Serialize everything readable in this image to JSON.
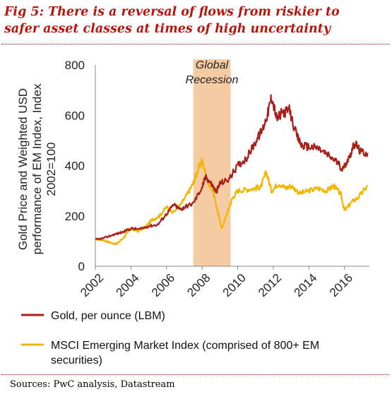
{
  "figure": {
    "title_line1": "Fig 5: There is a reversal of flows from riskier to",
    "title_line2": "safer asset classes at times of high uncertainty",
    "source": "Sources: PwC analysis, Datastream"
  },
  "colors": {
    "gold": "#a8201a",
    "msci": "#f2b600",
    "recession": "#f5cba3",
    "title": "#b5170f"
  },
  "chart_data": {
    "type": "line",
    "ylabel_lines": [
      "Gold Price and Weighted USD",
      "performance of EM Index, Index",
      "2002=100"
    ],
    "ylim": [
      0,
      800
    ],
    "yticks": [
      0,
      200,
      400,
      600,
      800
    ],
    "xlim": [
      2002,
      2017.4
    ],
    "xticks": [
      "2002",
      "2004",
      "2006",
      "2008",
      "2010",
      "2012",
      "2014",
      "2016"
    ],
    "shaded_region": {
      "label_line1": "Global",
      "label_line2": "Recession",
      "x_start": 2007.5,
      "x_end": 2009.6
    },
    "grid": false,
    "legend_position": "bottom",
    "series": [
      {
        "name": "Gold, per ounce (LBM)",
        "color": "#a8201a",
        "x": [
          2002.0,
          2002.5,
          2003.0,
          2003.5,
          2004.0,
          2004.5,
          2005.0,
          2005.5,
          2006.0,
          2006.4,
          2006.8,
          2007.0,
          2007.5,
          2008.0,
          2008.2,
          2008.5,
          2008.8,
          2009.0,
          2009.5,
          2010.0,
          2010.5,
          2011.0,
          2011.4,
          2011.7,
          2011.9,
          2012.2,
          2012.5,
          2012.9,
          2013.3,
          2013.6,
          2014.0,
          2014.5,
          2015.0,
          2015.5,
          2015.9,
          2016.3,
          2016.6,
          2016.9,
          2017.3
        ],
        "values": [
          105,
          112,
          125,
          135,
          150,
          147,
          160,
          165,
          208,
          245,
          225,
          235,
          250,
          315,
          355,
          330,
          295,
          330,
          345,
          400,
          430,
          495,
          545,
          610,
          675,
          585,
          610,
          620,
          520,
          480,
          475,
          470,
          445,
          420,
          385,
          440,
          490,
          455,
          450
        ]
      },
      {
        "name": "MSCI Emerging Market Index (comprised of 800+ EM securities)",
        "name_line1": "MSCI Emerging Market Index (comprised of 800+ EM",
        "name_line2": "securities)",
        "color": "#f2b600",
        "x": [
          2002.0,
          2002.4,
          2002.8,
          2003.2,
          2003.6,
          2004.0,
          2004.4,
          2004.8,
          2005.2,
          2005.6,
          2006.0,
          2006.4,
          2006.8,
          2007.2,
          2007.5,
          2007.8,
          2008.0,
          2008.3,
          2008.6,
          2008.9,
          2009.1,
          2009.4,
          2009.7,
          2010.0,
          2010.5,
          2011.0,
          2011.3,
          2011.6,
          2011.9,
          2012.3,
          2012.7,
          2013.0,
          2013.5,
          2014.0,
          2014.5,
          2015.0,
          2015.4,
          2015.8,
          2016.0,
          2016.4,
          2016.8,
          2017.3
        ],
        "values": [
          108,
          105,
          95,
          88,
          115,
          148,
          140,
          155,
          185,
          200,
          235,
          215,
          245,
          290,
          330,
          390,
          420,
          340,
          300,
          210,
          150,
          210,
          270,
          300,
          305,
          310,
          315,
          375,
          300,
          330,
          310,
          320,
          290,
          300,
          310,
          300,
          320,
          285,
          220,
          255,
          275,
          320
        ]
      }
    ]
  }
}
